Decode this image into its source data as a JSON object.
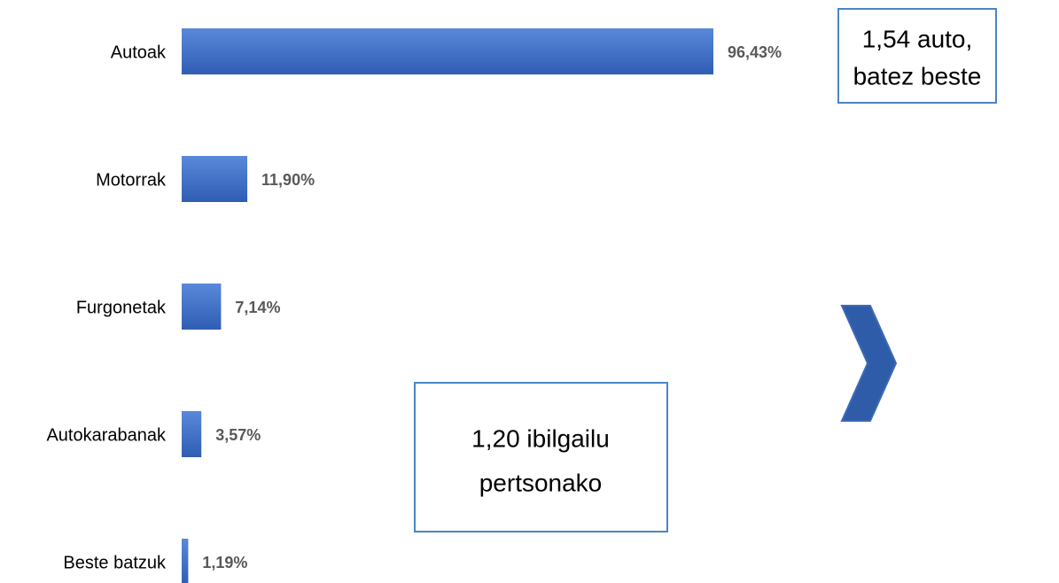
{
  "chart_data": {
    "type": "bar",
    "orientation": "horizontal",
    "categories": [
      "Autoak",
      "Motorrak",
      "Furgonetak",
      "Autokarabanak",
      "Beste batzuk"
    ],
    "values": [
      96.43,
      11.9,
      7.14,
      3.57,
      1.19
    ],
    "value_labels": [
      "96,43%",
      "11,90%",
      "7,14%",
      "3,57%",
      "1,19%"
    ],
    "color": "#4472c4",
    "annotations": [
      {
        "lines": [
          "1,54 auto,",
          "batez beste"
        ]
      },
      {
        "lines": [
          "1,20 ibilgailu",
          "pertsonako"
        ]
      }
    ]
  }
}
